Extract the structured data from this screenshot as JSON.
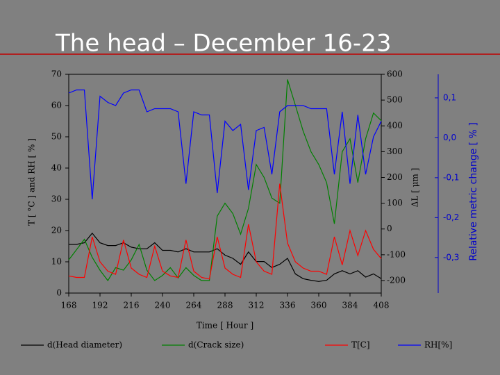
{
  "chart_data": {
    "type": "line",
    "title": "The head – December 16-23",
    "x_label": "Time [ Hour ]",
    "y_label": "T [ °C ] and RH [ % ]",
    "y2_label": "ΔL [ μm ]",
    "y3_label": "Relative metric change [ % ]",
    "xlim": [
      168,
      408
    ],
    "xticks": [
      168,
      192,
      216,
      240,
      264,
      288,
      312,
      336,
      360,
      384,
      408
    ],
    "ylim": [
      0,
      70
    ],
    "yticks": [
      0,
      10,
      20,
      30,
      40,
      50,
      60,
      70
    ],
    "y2lim": [
      -248.5,
      600
    ],
    "y2ticks": [
      -200,
      -100,
      0,
      100,
      200,
      300,
      400,
      500,
      600
    ],
    "y3lim": [
      -0.389,
      0.159
    ],
    "y3ticks": [
      {
        "value": 0.1,
        "label": "0,1"
      },
      {
        "value": 0.0,
        "label": "0,0"
      },
      {
        "value": -0.1,
        "label": "-0,1"
      },
      {
        "value": -0.2,
        "label": "-0,2"
      },
      {
        "value": -0.3,
        "label": "-0,3"
      }
    ],
    "x": [
      168,
      174,
      180,
      186,
      192,
      198,
      204,
      210,
      216,
      222,
      228,
      234,
      240,
      246,
      252,
      258,
      264,
      270,
      276,
      282,
      288,
      294,
      300,
      306,
      312,
      318,
      324,
      330,
      336,
      342,
      348,
      354,
      360,
      366,
      372,
      378,
      384,
      390,
      396,
      402,
      408
    ],
    "series": [
      {
        "name": "d(Head diameter)",
        "color": "#000000",
        "axis": "y3",
        "values": [
          -0.267,
          -0.267,
          -0.263,
          -0.239,
          -0.263,
          -0.27,
          -0.27,
          -0.263,
          -0.274,
          -0.278,
          -0.278,
          -0.263,
          -0.282,
          -0.282,
          -0.286,
          -0.278,
          -0.286,
          -0.286,
          -0.286,
          -0.278,
          -0.294,
          -0.302,
          -0.317,
          -0.286,
          -0.31,
          -0.31,
          -0.325,
          -0.317,
          -0.302,
          -0.341,
          -0.353,
          -0.357,
          -0.36,
          -0.357,
          -0.341,
          -0.333,
          -0.341,
          -0.333,
          -0.349,
          -0.341,
          -0.353
        ]
      },
      {
        "name": "d(Crack size)",
        "color": "#008000",
        "axis": "y2",
        "values": [
          -120,
          -80,
          -40,
          -110,
          -160,
          -200,
          -150,
          -160,
          -120,
          -60,
          -160,
          -200,
          -180,
          -150,
          -190,
          -150,
          -180,
          -200,
          -200,
          50,
          100,
          60,
          -20,
          80,
          250,
          200,
          120,
          100,
          580,
          480,
          380,
          300,
          250,
          180,
          20,
          300,
          350,
          180,
          350,
          450,
          420
        ]
      },
      {
        "name": "T[C]",
        "color": "#ff0000",
        "axis": "y",
        "values": [
          5.5,
          5,
          5,
          18,
          10,
          7,
          6,
          17,
          8,
          6,
          5,
          15,
          7,
          5.5,
          5,
          17,
          7,
          5,
          4.5,
          18,
          8,
          6,
          5,
          22,
          10,
          7,
          6,
          35,
          16,
          10,
          8,
          7,
          7,
          6,
          18,
          9,
          20,
          12,
          20,
          14,
          11
        ]
      },
      {
        "name": "RH[%]",
        "color": "#0000ff",
        "axis": "y",
        "values": [
          64,
          65,
          65,
          30,
          63,
          61,
          60,
          64,
          65,
          65,
          58,
          59,
          59,
          59,
          58,
          35,
          58,
          57,
          57,
          32,
          55,
          52,
          54,
          33,
          52,
          53,
          38,
          58,
          60,
          60,
          60,
          59,
          59,
          59,
          38,
          58,
          35,
          57,
          38,
          50,
          55
        ]
      }
    ]
  }
}
